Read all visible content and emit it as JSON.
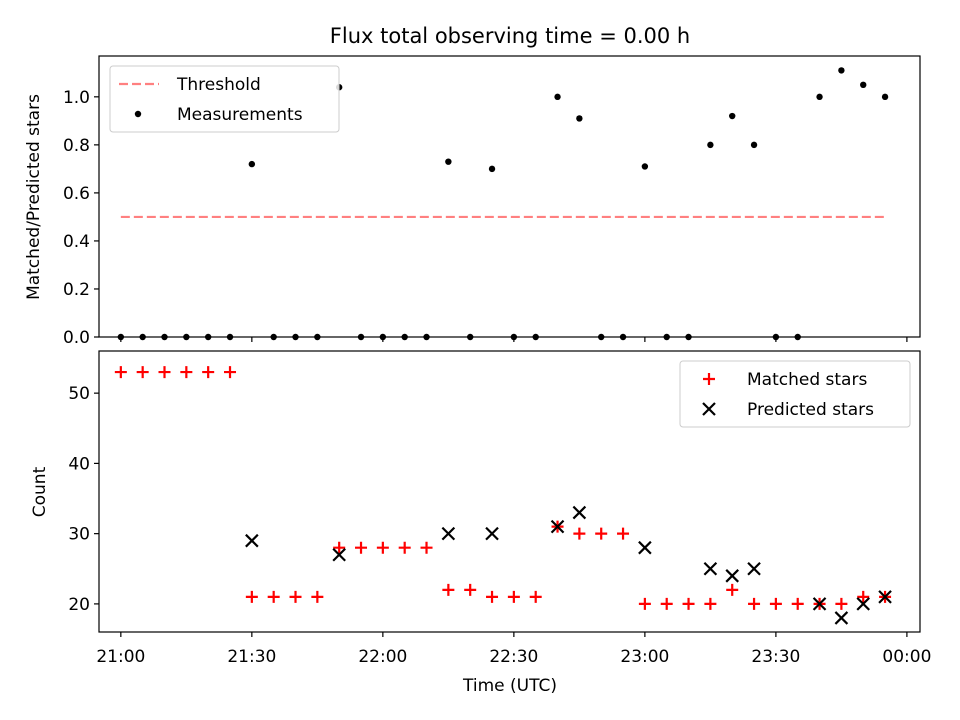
{
  "chart_data": [
    {
      "type": "scatter",
      "title": "Flux total observing time = 0.00 h",
      "xlabel": "",
      "ylabel": "Matched/Predicted stars",
      "xlim": [
        "20:55",
        "00:03"
      ],
      "ylim": [
        0,
        1.17
      ],
      "yticks": [
        0.0,
        0.2,
        0.4,
        0.6,
        0.8,
        1.0
      ],
      "ytick_labels": [
        "0.0",
        "0.2",
        "0.4",
        "0.6",
        "0.8",
        "1.0"
      ],
      "legend_position": "top-left",
      "series": [
        {
          "name": "Threshold",
          "kind": "dashed-line",
          "color": "#ff8080",
          "points": [
            [
              "21:00",
              0.5
            ],
            [
              "23:55",
              0.5
            ]
          ]
        },
        {
          "name": "Measurements",
          "kind": "dot",
          "color": "#000000",
          "points": [
            [
              "21:00",
              0.0
            ],
            [
              "21:05",
              0.0
            ],
            [
              "21:10",
              0.0
            ],
            [
              "21:15",
              0.0
            ],
            [
              "21:20",
              0.0
            ],
            [
              "21:25",
              0.0
            ],
            [
              "21:30",
              0.72
            ],
            [
              "21:35",
              0.0
            ],
            [
              "21:40",
              0.0
            ],
            [
              "21:45",
              0.0
            ],
            [
              "21:50",
              1.04
            ],
            [
              "21:55",
              0.0
            ],
            [
              "22:00",
              0.0
            ],
            [
              "22:05",
              0.0
            ],
            [
              "22:10",
              0.0
            ],
            [
              "22:15",
              0.73
            ],
            [
              "22:20",
              0.0
            ],
            [
              "22:25",
              0.7
            ],
            [
              "22:30",
              0.0
            ],
            [
              "22:35",
              0.0
            ],
            [
              "22:40",
              1.0
            ],
            [
              "22:45",
              0.91
            ],
            [
              "22:50",
              0.0
            ],
            [
              "22:55",
              0.0
            ],
            [
              "23:00",
              0.71
            ],
            [
              "23:05",
              0.0
            ],
            [
              "23:10",
              0.0
            ],
            [
              "23:15",
              0.8
            ],
            [
              "23:20",
              0.92
            ],
            [
              "23:25",
              0.8
            ],
            [
              "23:30",
              0.0
            ],
            [
              "23:35",
              0.0
            ],
            [
              "23:40",
              1.0
            ],
            [
              "23:45",
              1.11
            ],
            [
              "23:50",
              1.05
            ],
            [
              "23:55",
              1.0
            ]
          ]
        }
      ]
    },
    {
      "type": "scatter",
      "title": "",
      "xlabel": "Time (UTC)",
      "ylabel": "Count",
      "xlim": [
        "20:55",
        "00:03"
      ],
      "ylim": [
        16,
        56
      ],
      "yticks": [
        20,
        30,
        40,
        50
      ],
      "ytick_labels": [
        "20",
        "30",
        "40",
        "50"
      ],
      "xticks": [
        "21:00",
        "21:30",
        "22:00",
        "22:30",
        "23:00",
        "23:30",
        "00:00"
      ],
      "xtick_labels": [
        "21:00",
        "21:30",
        "22:00",
        "22:30",
        "23:00",
        "23:30",
        "00:00"
      ],
      "legend_position": "top-right",
      "series": [
        {
          "name": "Matched stars",
          "kind": "plus",
          "color": "#ff0000",
          "points": [
            [
              "21:00",
              53
            ],
            [
              "21:05",
              53
            ],
            [
              "21:10",
              53
            ],
            [
              "21:15",
              53
            ],
            [
              "21:20",
              53
            ],
            [
              "21:25",
              53
            ],
            [
              "21:30",
              21
            ],
            [
              "21:35",
              21
            ],
            [
              "21:40",
              21
            ],
            [
              "21:45",
              21
            ],
            [
              "21:50",
              28
            ],
            [
              "21:55",
              28
            ],
            [
              "22:00",
              28
            ],
            [
              "22:05",
              28
            ],
            [
              "22:10",
              28
            ],
            [
              "22:15",
              22
            ],
            [
              "22:20",
              22
            ],
            [
              "22:25",
              21
            ],
            [
              "22:30",
              21
            ],
            [
              "22:35",
              21
            ],
            [
              "22:40",
              31
            ],
            [
              "22:45",
              30
            ],
            [
              "22:50",
              30
            ],
            [
              "22:55",
              30
            ],
            [
              "23:00",
              20
            ],
            [
              "23:05",
              20
            ],
            [
              "23:10",
              20
            ],
            [
              "23:15",
              20
            ],
            [
              "23:20",
              22
            ],
            [
              "23:25",
              20
            ],
            [
              "23:30",
              20
            ],
            [
              "23:35",
              20
            ],
            [
              "23:40",
              20
            ],
            [
              "23:45",
              20
            ],
            [
              "23:50",
              21
            ],
            [
              "23:55",
              21
            ]
          ]
        },
        {
          "name": "Predicted stars",
          "kind": "x",
          "color": "#000000",
          "points": [
            [
              "21:30",
              29
            ],
            [
              "21:50",
              27
            ],
            [
              "22:15",
              30
            ],
            [
              "22:25",
              30
            ],
            [
              "22:40",
              31
            ],
            [
              "22:45",
              33
            ],
            [
              "23:00",
              28
            ],
            [
              "23:15",
              25
            ],
            [
              "23:20",
              24
            ],
            [
              "23:25",
              25
            ],
            [
              "23:40",
              20
            ],
            [
              "23:45",
              18
            ],
            [
              "23:50",
              20
            ],
            [
              "23:55",
              21
            ]
          ]
        }
      ]
    }
  ]
}
